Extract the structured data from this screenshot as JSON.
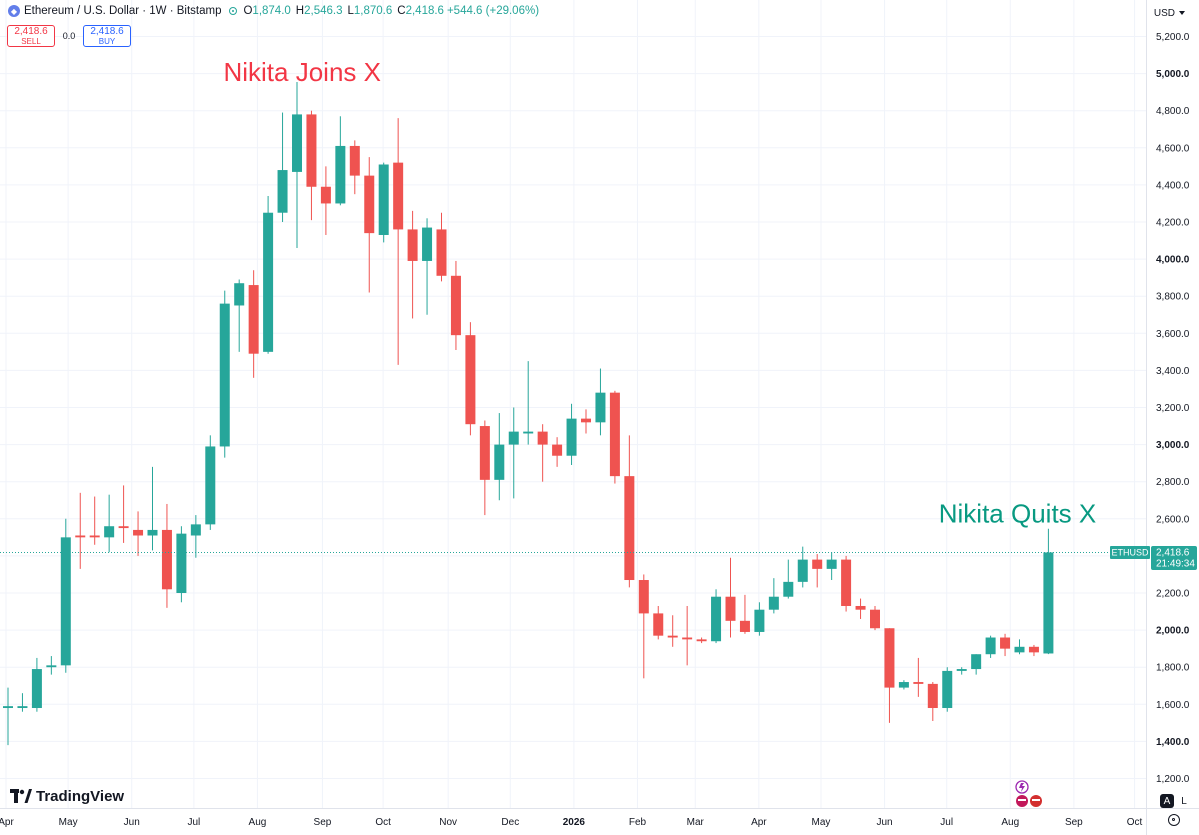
{
  "header": {
    "symbol_title": "Ethereum / U.S. Dollar · 1W · Bitstamp",
    "open_label": "O",
    "open_value": "1,874.0",
    "high_label": "H",
    "high_value": "2,546.3",
    "low_label": "L",
    "low_value": "1,870.6",
    "close_label": "C",
    "close_value": "2,418.6",
    "change_value": "+544.6 (+29.06%)"
  },
  "trade": {
    "sell_price": "2,418.6",
    "sell_label": "SELL",
    "spread": "0.0",
    "buy_price": "2,418.6",
    "buy_label": "BUY"
  },
  "currency_label": "USD",
  "brand": "TradingView",
  "scale_buttons": {
    "auto": "A",
    "log": "L"
  },
  "colors": {
    "up": "#26a69a",
    "down": "#ef5350",
    "joins_annotation": "#f23645",
    "quits_annotation": "#089981"
  },
  "chart_data": {
    "type": "candlestick",
    "timeframe": "1W",
    "y_axis_labels": [
      "1,200.0",
      "1,400.0",
      "1,600.0",
      "1,800.0",
      "2,000.0",
      "2,200.0",
      "2,400.0",
      "2,600.0",
      "2,800.0",
      "3,000.0",
      "3,200.0",
      "3,400.0",
      "3,600.0",
      "3,800.0",
      "4,000.0",
      "4,200.0",
      "4,400.0",
      "4,600.0",
      "4,800.0",
      "5,000.0",
      "5,200.0"
    ],
    "y_ticks": [
      1200,
      1400,
      1600,
      1800,
      2000,
      2200,
      2400,
      2600,
      2800,
      3000,
      3200,
      3400,
      3600,
      3800,
      4000,
      4200,
      4400,
      4600,
      4800,
      5000,
      5200
    ],
    "bold_ticks": [
      1400,
      2000,
      3000,
      4000,
      5000
    ],
    "ylim": [
      1130,
      5300
    ],
    "x_axis_labels": [
      {
        "label": "Apr",
        "week": 0
      },
      {
        "label": "May",
        "week": 4.3
      },
      {
        "label": "Jun",
        "week": 8.7
      },
      {
        "label": "Jul",
        "week": 13
      },
      {
        "label": "Aug",
        "week": 17.4
      },
      {
        "label": "Sep",
        "week": 21.9
      },
      {
        "label": "Oct",
        "week": 26.1
      },
      {
        "label": "Nov",
        "week": 30.6
      },
      {
        "label": "Dec",
        "week": 34.9
      },
      {
        "label": "2026",
        "week": 39.3
      },
      {
        "label": "Feb",
        "week": 43.7
      },
      {
        "label": "Mar",
        "week": 47.7
      },
      {
        "label": "Apr",
        "week": 52.1
      },
      {
        "label": "May",
        "week": 56.4
      },
      {
        "label": "Jun",
        "week": 60.8
      },
      {
        "label": "Jul",
        "week": 65.1
      },
      {
        "label": "Aug",
        "week": 69.5
      },
      {
        "label": "Sep",
        "week": 73.9
      },
      {
        "label": "Oct",
        "week": 78.1
      }
    ],
    "bold_x_labels": [
      "2026"
    ],
    "candles": [
      {
        "o": 1580,
        "h": 1690,
        "l": 1380,
        "c": 1590
      },
      {
        "o": 1580,
        "h": 1660,
        "l": 1560,
        "c": 1590
      },
      {
        "o": 1580,
        "h": 1850,
        "l": 1560,
        "c": 1790
      },
      {
        "o": 1800,
        "h": 1860,
        "l": 1760,
        "c": 1810
      },
      {
        "o": 1810,
        "h": 2600,
        "l": 1770,
        "c": 2500
      },
      {
        "o": 2510,
        "h": 2740,
        "l": 2330,
        "c": 2500
      },
      {
        "o": 2510,
        "h": 2720,
        "l": 2460,
        "c": 2500
      },
      {
        "o": 2500,
        "h": 2730,
        "l": 2420,
        "c": 2560
      },
      {
        "o": 2560,
        "h": 2780,
        "l": 2470,
        "c": 2550
      },
      {
        "o": 2540,
        "h": 2640,
        "l": 2400,
        "c": 2510
      },
      {
        "o": 2510,
        "h": 2880,
        "l": 2430,
        "c": 2540
      },
      {
        "o": 2540,
        "h": 2680,
        "l": 2120,
        "c": 2220
      },
      {
        "o": 2200,
        "h": 2560,
        "l": 2150,
        "c": 2520
      },
      {
        "o": 2510,
        "h": 2620,
        "l": 2390,
        "c": 2570
      },
      {
        "o": 2570,
        "h": 3050,
        "l": 2540,
        "c": 2990
      },
      {
        "o": 2990,
        "h": 3830,
        "l": 2930,
        "c": 3760
      },
      {
        "o": 3750,
        "h": 3890,
        "l": 3500,
        "c": 3870
      },
      {
        "o": 3860,
        "h": 3940,
        "l": 3360,
        "c": 3490
      },
      {
        "o": 3500,
        "h": 4340,
        "l": 3490,
        "c": 4250
      },
      {
        "o": 4250,
        "h": 4790,
        "l": 4200,
        "c": 4480
      },
      {
        "o": 4470,
        "h": 4955,
        "l": 4060,
        "c": 4780
      },
      {
        "o": 4780,
        "h": 4800,
        "l": 4210,
        "c": 4390
      },
      {
        "o": 4390,
        "h": 4500,
        "l": 4130,
        "c": 4300
      },
      {
        "o": 4300,
        "h": 4770,
        "l": 4290,
        "c": 4610
      },
      {
        "o": 4610,
        "h": 4640,
        "l": 4350,
        "c": 4450
      },
      {
        "o": 4450,
        "h": 4550,
        "l": 3820,
        "c": 4140
      },
      {
        "o": 4130,
        "h": 4520,
        "l": 4090,
        "c": 4510
      },
      {
        "o": 4520,
        "h": 4760,
        "l": 3430,
        "c": 4160
      },
      {
        "o": 4160,
        "h": 4260,
        "l": 3680,
        "c": 3990
      },
      {
        "o": 3990,
        "h": 4220,
        "l": 3700,
        "c": 4170
      },
      {
        "o": 4160,
        "h": 4250,
        "l": 3880,
        "c": 3910
      },
      {
        "o": 3910,
        "h": 3990,
        "l": 3510,
        "c": 3590
      },
      {
        "o": 3590,
        "h": 3660,
        "l": 3050,
        "c": 3110
      },
      {
        "o": 3100,
        "h": 3130,
        "l": 2620,
        "c": 2810
      },
      {
        "o": 2810,
        "h": 3170,
        "l": 2700,
        "c": 3000
      },
      {
        "o": 3000,
        "h": 3200,
        "l": 2710,
        "c": 3070
      },
      {
        "o": 3060,
        "h": 3450,
        "l": 3000,
        "c": 3070
      },
      {
        "o": 3070,
        "h": 3110,
        "l": 2800,
        "c": 3000
      },
      {
        "o": 3000,
        "h": 3040,
        "l": 2880,
        "c": 2940
      },
      {
        "o": 2940,
        "h": 3220,
        "l": 2890,
        "c": 3140
      },
      {
        "o": 3140,
        "h": 3190,
        "l": 3060,
        "c": 3120
      },
      {
        "o": 3120,
        "h": 3410,
        "l": 3050,
        "c": 3280
      },
      {
        "o": 3280,
        "h": 3290,
        "l": 2790,
        "c": 2830
      },
      {
        "o": 2830,
        "h": 3050,
        "l": 2230,
        "c": 2270
      },
      {
        "o": 2270,
        "h": 2300,
        "l": 1740,
        "c": 2090
      },
      {
        "o": 2090,
        "h": 2130,
        "l": 1950,
        "c": 1970
      },
      {
        "o": 1970,
        "h": 2080,
        "l": 1910,
        "c": 1960
      },
      {
        "o": 1960,
        "h": 2130,
        "l": 1810,
        "c": 1950
      },
      {
        "o": 1950,
        "h": 1960,
        "l": 1930,
        "c": 1940
      },
      {
        "o": 1940,
        "h": 2220,
        "l": 1930,
        "c": 2180
      },
      {
        "o": 2180,
        "h": 2390,
        "l": 1960,
        "c": 2050
      },
      {
        "o": 2050,
        "h": 2190,
        "l": 1980,
        "c": 1990
      },
      {
        "o": 1990,
        "h": 2150,
        "l": 1970,
        "c": 2110
      },
      {
        "o": 2110,
        "h": 2280,
        "l": 2090,
        "c": 2180
      },
      {
        "o": 2180,
        "h": 2380,
        "l": 2170,
        "c": 2260
      },
      {
        "o": 2260,
        "h": 2450,
        "l": 2230,
        "c": 2380
      },
      {
        "o": 2380,
        "h": 2410,
        "l": 2230,
        "c": 2330
      },
      {
        "o": 2330,
        "h": 2420,
        "l": 2270,
        "c": 2380
      },
      {
        "o": 2380,
        "h": 2400,
        "l": 2100,
        "c": 2130
      },
      {
        "o": 2130,
        "h": 2170,
        "l": 2060,
        "c": 2110
      },
      {
        "o": 2110,
        "h": 2130,
        "l": 2000,
        "c": 2010
      },
      {
        "o": 2010,
        "h": 2010,
        "l": 1500,
        "c": 1690
      },
      {
        "o": 1690,
        "h": 1730,
        "l": 1680,
        "c": 1720
      },
      {
        "o": 1720,
        "h": 1850,
        "l": 1640,
        "c": 1710
      },
      {
        "o": 1710,
        "h": 1720,
        "l": 1510,
        "c": 1580
      },
      {
        "o": 1580,
        "h": 1800,
        "l": 1560,
        "c": 1780
      },
      {
        "o": 1780,
        "h": 1800,
        "l": 1760,
        "c": 1790
      },
      {
        "o": 1790,
        "h": 1870,
        "l": 1760,
        "c": 1870
      },
      {
        "o": 1870,
        "h": 1970,
        "l": 1850,
        "c": 1960
      },
      {
        "o": 1960,
        "h": 1980,
        "l": 1860,
        "c": 1900
      },
      {
        "o": 1880,
        "h": 1950,
        "l": 1870,
        "c": 1910
      },
      {
        "o": 1910,
        "h": 1920,
        "l": 1860,
        "c": 1880
      },
      {
        "o": 1874,
        "h": 2546.3,
        "l": 1870.6,
        "c": 2418.6
      }
    ],
    "last_price": 2418.6,
    "last_price_label": "2,418.6",
    "countdown": "21:49:34",
    "ticker_label": "ETHUSD",
    "annotations": [
      {
        "text": "Nikita Joins X",
        "week": 20.5,
        "price": 4960,
        "color": "#f23645"
      },
      {
        "text": "Nikita Quits X",
        "week": 70,
        "price": 2580,
        "color": "#089981"
      }
    ]
  }
}
